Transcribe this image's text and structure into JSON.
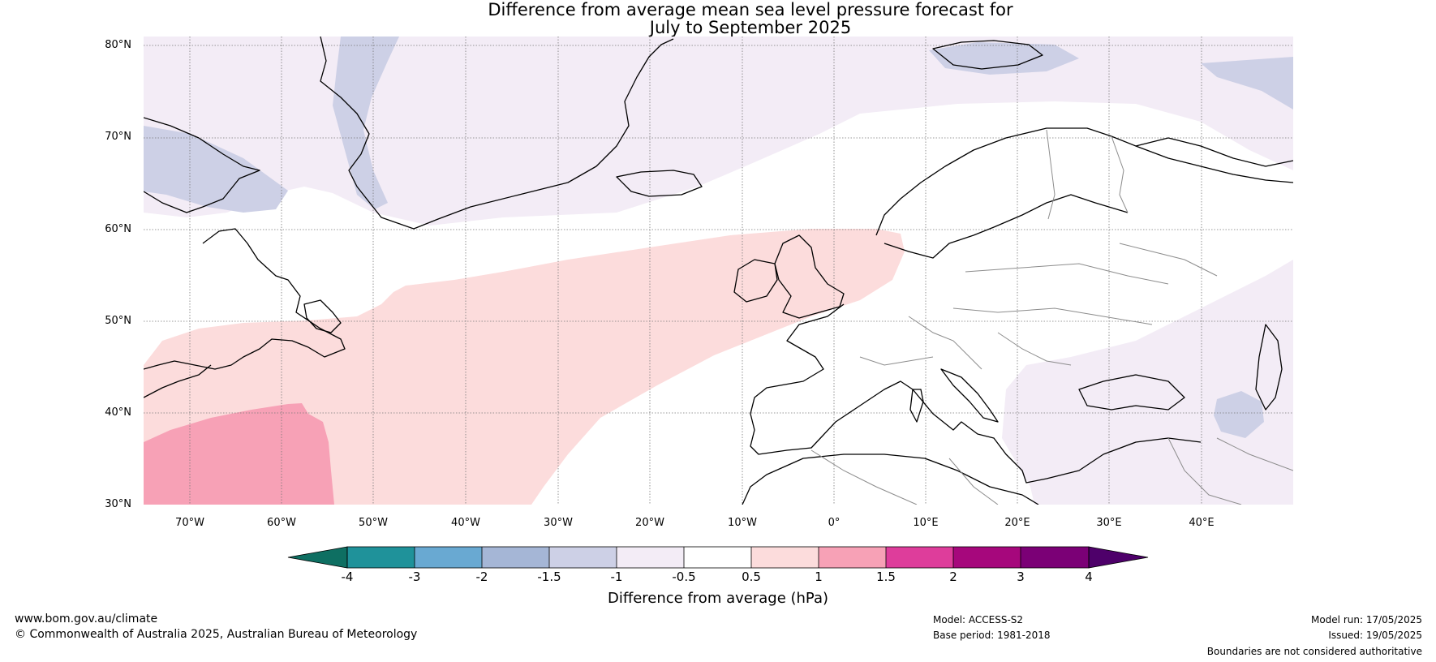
{
  "title": {
    "line1": "Difference from average mean sea level pressure forecast for",
    "line2": "July to September 2025"
  },
  "latitude_labels": [
    "80°N",
    "70°N",
    "60°N",
    "50°N",
    "40°N",
    "30°N"
  ],
  "longitude_labels": [
    "70°W",
    "60°W",
    "50°W",
    "40°W",
    "30°W",
    "20°W",
    "10°W",
    "0°",
    "10°E",
    "20°E",
    "30°E",
    "40°E"
  ],
  "map_extent": {
    "lon": [
      -75,
      50
    ],
    "lat": [
      30,
      81
    ]
  },
  "colorbar": {
    "label": "Difference from average (hPa)",
    "ticks": [
      "-4",
      "-3",
      "-2",
      "-1.5",
      "-1",
      "-0.5",
      "0.5",
      "1",
      "1.5",
      "2",
      "3",
      "4"
    ],
    "colors": [
      "#0e6f62",
      "#1f929a",
      "#69a9d2",
      "#a5b6d6",
      "#cdd0e6",
      "#f3ecf6",
      "#ffffff",
      "#fcdcdc",
      "#f7a1b6",
      "#de3d9b",
      "#a6077c",
      "#7b0076",
      "#4e006a"
    ]
  },
  "footer": {
    "website": "www.bom.gov.au/climate",
    "copyright": "© Commonwealth of Australia 2025, Australian Bureau of Meteorology",
    "model": "Model: ACCESS-S2",
    "base_period": "Base period: 1981-2018",
    "model_run": "Model run: 17/05/2025",
    "issued": "Issued: 19/05/2025",
    "disclaimer": "Boundaries are not considered authoritative"
  }
}
